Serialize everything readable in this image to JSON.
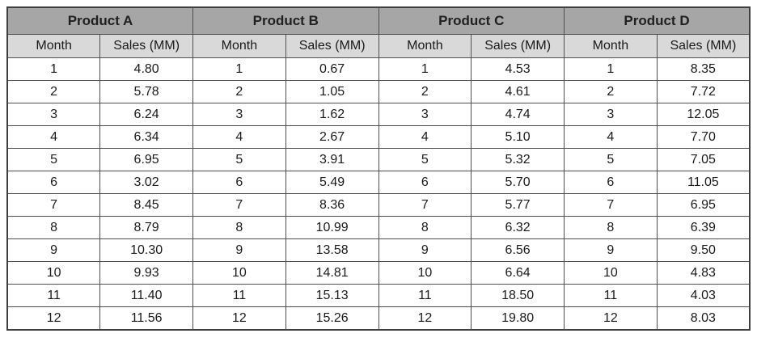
{
  "table": {
    "colors": {
      "header_bg": "#a6a6a6",
      "subheader_bg": "#d9d9d9",
      "row_bg": "#ffffff",
      "border_outer": "#3f3f3f",
      "border_inner": "#4f4f4f"
    },
    "months": [
      "1",
      "2",
      "3",
      "4",
      "5",
      "6",
      "7",
      "8",
      "9",
      "10",
      "11",
      "12"
    ],
    "products": [
      {
        "name": "Product A",
        "columns": [
          "Month",
          "Sales (MM)"
        ],
        "sales": [
          "4.80",
          "5.78",
          "6.24",
          "6.34",
          "6.95",
          "3.02",
          "8.45",
          "8.79",
          "10.30",
          "9.93",
          "11.40",
          "11.56"
        ]
      },
      {
        "name": "Product B",
        "columns": [
          "Month",
          "Sales (MM)"
        ],
        "sales": [
          "0.67",
          "1.05",
          "1.62",
          "2.67",
          "3.91",
          "5.49",
          "8.36",
          "10.99",
          "13.58",
          "14.81",
          "15.13",
          "15.26"
        ]
      },
      {
        "name": "Product C",
        "columns": [
          "Month",
          "Sales (MM)"
        ],
        "sales": [
          "4.53",
          "4.61",
          "4.74",
          "5.10",
          "5.32",
          "5.70",
          "5.77",
          "6.32",
          "6.56",
          "6.64",
          "18.50",
          "19.80"
        ]
      },
      {
        "name": "Product D",
        "columns": [
          "Month",
          "Sales (MM)"
        ],
        "sales": [
          "8.35",
          "7.72",
          "12.05",
          "7.70",
          "7.05",
          "11.05",
          "6.95",
          "6.39",
          "9.50",
          "4.83",
          "4.03",
          "8.03"
        ]
      }
    ]
  },
  "chart_data": {
    "type": "table",
    "categories": [
      1,
      2,
      3,
      4,
      5,
      6,
      7,
      8,
      9,
      10,
      11,
      12
    ],
    "column_headers": [
      "Month",
      "Sales (MM)"
    ],
    "series": [
      {
        "name": "Product A",
        "values": [
          4.8,
          5.78,
          6.24,
          6.34,
          6.95,
          3.02,
          8.45,
          8.79,
          10.3,
          9.93,
          11.4,
          11.56
        ]
      },
      {
        "name": "Product B",
        "values": [
          0.67,
          1.05,
          1.62,
          2.67,
          3.91,
          5.49,
          8.36,
          10.99,
          13.58,
          14.81,
          15.13,
          15.26
        ]
      },
      {
        "name": "Product C",
        "values": [
          4.53,
          4.61,
          4.74,
          5.1,
          5.32,
          5.7,
          5.77,
          6.32,
          6.56,
          6.64,
          18.5,
          19.8
        ]
      },
      {
        "name": "Product D",
        "values": [
          8.35,
          7.72,
          12.05,
          7.7,
          7.05,
          11.05,
          6.95,
          6.39,
          9.5,
          4.83,
          4.03,
          8.03
        ]
      }
    ],
    "title": "",
    "xlabel": "Month",
    "ylabel": "Sales (MM)"
  }
}
